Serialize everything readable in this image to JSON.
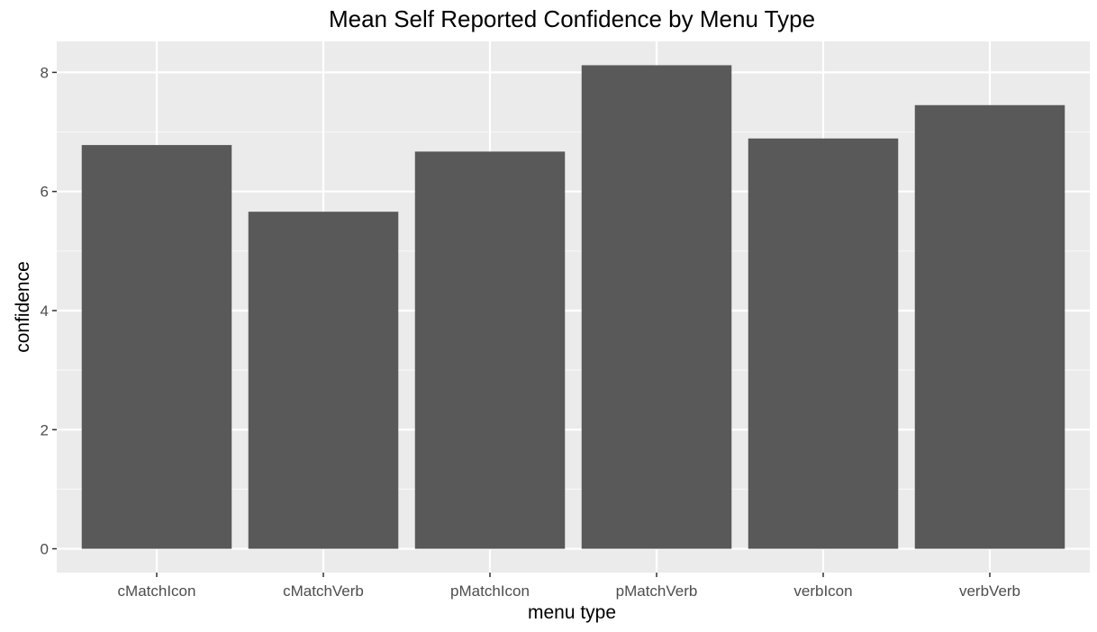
{
  "chart_data": {
    "type": "bar",
    "title": "Mean Self Reported Confidence by Menu Type",
    "xlabel": "menu type",
    "ylabel": "confidence",
    "categories": [
      "cMatchIcon",
      "cMatchVerb",
      "pMatchIcon",
      "pMatchVerb",
      "verbIcon",
      "verbVerb"
    ],
    "values": [
      6.78,
      5.66,
      6.67,
      8.12,
      6.89,
      7.45
    ],
    "yticks": [
      0,
      2,
      4,
      6,
      8
    ],
    "ylim": [
      -0.4,
      8.52
    ],
    "grid": true,
    "legend": "none",
    "colors": {
      "bar": "#595959",
      "panel": "#ebebeb",
      "grid_major": "#ffffff",
      "tick_text": "#4d4d4d"
    }
  }
}
